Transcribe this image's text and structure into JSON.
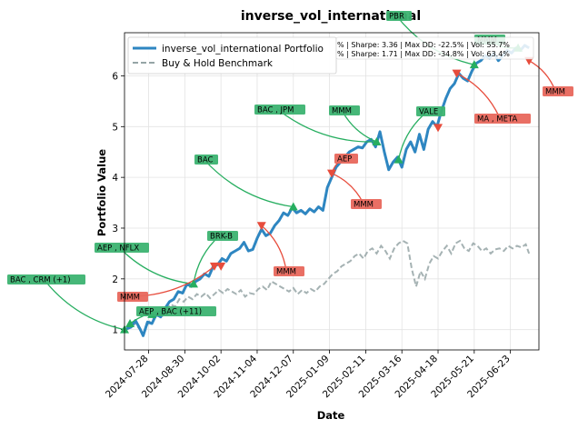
{
  "chart_data": {
    "type": "line",
    "title": "inverse_vol_international",
    "xlabel": "Date",
    "ylabel": "Portfolio Value",
    "xlim": [
      "2024-07-06",
      "2025-07-19"
    ],
    "ylim": [
      0.6,
      6.85
    ],
    "grid": true,
    "x_ticks": [
      "2024-07-28",
      "2024-08-30",
      "2024-10-02",
      "2024-11-04",
      "2024-12-07",
      "2025-01-09",
      "2025-02-11",
      "2025-03-16",
      "2025-04-18",
      "2025-05-21",
      "2025-06-23"
    ],
    "y_ticks": [
      1,
      2,
      3,
      4,
      5,
      6
    ],
    "legend": {
      "placement": "upper-left",
      "entries": [
        "inverse_vol_international Portfolio",
        "Buy & Hold Benchmark"
      ]
    },
    "stats": [
      "% | Sharpe: 3.36 | Max DD: -22.5% | Vol: 55.7%",
      "% | Sharpe: 1.71 | Max DD: -34.8% | Vol: 63.4%"
    ],
    "series": [
      {
        "name": "inverse_vol_international Portfolio",
        "color": "#2e86c1",
        "points": [
          [
            "2024-07-06",
            1.0
          ],
          [
            "2024-07-12",
            1.05
          ],
          [
            "2024-07-16",
            1.18
          ],
          [
            "2024-07-20",
            1.02
          ],
          [
            "2024-07-23",
            0.88
          ],
          [
            "2024-07-27",
            1.15
          ],
          [
            "2024-07-31",
            1.12
          ],
          [
            "2024-08-04",
            1.3
          ],
          [
            "2024-08-08",
            1.25
          ],
          [
            "2024-08-12",
            1.42
          ],
          [
            "2024-08-16",
            1.55
          ],
          [
            "2024-08-20",
            1.6
          ],
          [
            "2024-08-24",
            1.75
          ],
          [
            "2024-08-28",
            1.72
          ],
          [
            "2024-09-01",
            1.9
          ],
          [
            "2024-09-05",
            1.85
          ],
          [
            "2024-09-09",
            1.95
          ],
          [
            "2024-09-13",
            2.0
          ],
          [
            "2024-09-17",
            2.1
          ],
          [
            "2024-09-21",
            2.05
          ],
          [
            "2024-09-25",
            2.25
          ],
          [
            "2024-09-29",
            2.28
          ],
          [
            "2024-10-03",
            2.4
          ],
          [
            "2024-10-07",
            2.35
          ],
          [
            "2024-10-11",
            2.5
          ],
          [
            "2024-10-15",
            2.55
          ],
          [
            "2024-10-19",
            2.6
          ],
          [
            "2024-10-23",
            2.72
          ],
          [
            "2024-10-27",
            2.55
          ],
          [
            "2024-10-31",
            2.58
          ],
          [
            "2024-11-04",
            2.8
          ],
          [
            "2024-11-08",
            2.98
          ],
          [
            "2024-11-12",
            2.85
          ],
          [
            "2024-11-16",
            2.9
          ],
          [
            "2024-11-20",
            3.05
          ],
          [
            "2024-11-24",
            3.15
          ],
          [
            "2024-11-28",
            3.3
          ],
          [
            "2024-12-02",
            3.25
          ],
          [
            "2024-12-06",
            3.4
          ],
          [
            "2024-12-10",
            3.3
          ],
          [
            "2024-12-14",
            3.35
          ],
          [
            "2024-12-18",
            3.28
          ],
          [
            "2024-12-22",
            3.38
          ],
          [
            "2024-12-26",
            3.32
          ],
          [
            "2024-12-30",
            3.42
          ],
          [
            "2025-01-03",
            3.35
          ],
          [
            "2025-01-07",
            3.8
          ],
          [
            "2025-01-11",
            4.0
          ],
          [
            "2025-01-15",
            4.2
          ],
          [
            "2025-01-19",
            4.3
          ],
          [
            "2025-01-23",
            4.4
          ],
          [
            "2025-01-27",
            4.5
          ],
          [
            "2025-01-31",
            4.55
          ],
          [
            "2025-02-04",
            4.6
          ],
          [
            "2025-02-08",
            4.58
          ],
          [
            "2025-02-12",
            4.7
          ],
          [
            "2025-02-16",
            4.75
          ],
          [
            "2025-02-20",
            4.6
          ],
          [
            "2025-02-24",
            4.9
          ],
          [
            "2025-02-28",
            4.5
          ],
          [
            "2025-03-04",
            4.15
          ],
          [
            "2025-03-08",
            4.3
          ],
          [
            "2025-03-12",
            4.4
          ],
          [
            "2025-03-16",
            4.2
          ],
          [
            "2025-03-20",
            4.55
          ],
          [
            "2025-03-24",
            4.7
          ],
          [
            "2025-03-28",
            4.5
          ],
          [
            "2025-04-01",
            4.85
          ],
          [
            "2025-04-05",
            4.55
          ],
          [
            "2025-04-09",
            4.95
          ],
          [
            "2025-04-13",
            5.1
          ],
          [
            "2025-04-17",
            5.0
          ],
          [
            "2025-04-21",
            5.3
          ],
          [
            "2025-04-25",
            5.55
          ],
          [
            "2025-04-29",
            5.75
          ],
          [
            "2025-05-03",
            5.85
          ],
          [
            "2025-05-07",
            6.05
          ],
          [
            "2025-05-11",
            5.95
          ],
          [
            "2025-05-15",
            5.9
          ],
          [
            "2025-05-19",
            6.1
          ],
          [
            "2025-05-23",
            6.25
          ],
          [
            "2025-05-27",
            6.3
          ],
          [
            "2025-05-31",
            6.4
          ],
          [
            "2025-06-04",
            6.35
          ],
          [
            "2025-06-08",
            6.45
          ],
          [
            "2025-06-12",
            6.3
          ],
          [
            "2025-06-16",
            6.4
          ],
          [
            "2025-06-20",
            6.5
          ],
          [
            "2025-06-24",
            6.45
          ],
          [
            "2025-06-28",
            6.55
          ],
          [
            "2025-07-02",
            6.5
          ],
          [
            "2025-07-06",
            6.6
          ],
          [
            "2025-07-10",
            6.55
          ]
        ]
      },
      {
        "name": "Buy & Hold Benchmark",
        "color": "#95a5a6",
        "points": [
          [
            "2024-07-06",
            1.0
          ],
          [
            "2024-07-12",
            1.05
          ],
          [
            "2024-07-16",
            1.12
          ],
          [
            "2024-07-20",
            1.0
          ],
          [
            "2024-07-24",
            0.95
          ],
          [
            "2024-07-28",
            1.15
          ],
          [
            "2024-08-01",
            1.2
          ],
          [
            "2024-08-05",
            1.35
          ],
          [
            "2024-08-09",
            1.25
          ],
          [
            "2024-08-13",
            1.4
          ],
          [
            "2024-08-17",
            1.5
          ],
          [
            "2024-08-21",
            1.45
          ],
          [
            "2024-08-25",
            1.6
          ],
          [
            "2024-08-29",
            1.55
          ],
          [
            "2024-09-02",
            1.65
          ],
          [
            "2024-09-06",
            1.6
          ],
          [
            "2024-09-10",
            1.7
          ],
          [
            "2024-09-14",
            1.65
          ],
          [
            "2024-09-18",
            1.72
          ],
          [
            "2024-09-22",
            1.62
          ],
          [
            "2024-09-26",
            1.7
          ],
          [
            "2024-09-30",
            1.78
          ],
          [
            "2024-10-04",
            1.72
          ],
          [
            "2024-10-08",
            1.8
          ],
          [
            "2024-10-12",
            1.75
          ],
          [
            "2024-10-16",
            1.7
          ],
          [
            "2024-10-20",
            1.78
          ],
          [
            "2024-10-24",
            1.65
          ],
          [
            "2024-10-28",
            1.72
          ],
          [
            "2024-11-01",
            1.7
          ],
          [
            "2024-11-05",
            1.8
          ],
          [
            "2024-11-09",
            1.85
          ],
          [
            "2024-11-13",
            1.78
          ],
          [
            "2024-11-17",
            1.95
          ],
          [
            "2024-11-21",
            1.9
          ],
          [
            "2024-11-25",
            1.85
          ],
          [
            "2024-11-29",
            1.8
          ],
          [
            "2024-12-03",
            1.75
          ],
          [
            "2024-12-07",
            1.82
          ],
          [
            "2024-12-11",
            1.7
          ],
          [
            "2024-12-15",
            1.78
          ],
          [
            "2024-12-19",
            1.72
          ],
          [
            "2024-12-23",
            1.8
          ],
          [
            "2024-12-27",
            1.75
          ],
          [
            "2024-12-31",
            1.85
          ],
          [
            "2025-01-04",
            1.9
          ],
          [
            "2025-01-08",
            2.0
          ],
          [
            "2025-01-12",
            2.1
          ],
          [
            "2025-01-16",
            2.15
          ],
          [
            "2025-01-20",
            2.25
          ],
          [
            "2025-01-24",
            2.3
          ],
          [
            "2025-01-28",
            2.35
          ],
          [
            "2025-02-01",
            2.45
          ],
          [
            "2025-02-05",
            2.5
          ],
          [
            "2025-02-09",
            2.4
          ],
          [
            "2025-02-13",
            2.55
          ],
          [
            "2025-02-17",
            2.6
          ],
          [
            "2025-02-21",
            2.5
          ],
          [
            "2025-02-25",
            2.65
          ],
          [
            "2025-03-01",
            2.55
          ],
          [
            "2025-03-05",
            2.4
          ],
          [
            "2025-03-09",
            2.6
          ],
          [
            "2025-03-13",
            2.7
          ],
          [
            "2025-03-17",
            2.75
          ],
          [
            "2025-03-21",
            2.7
          ],
          [
            "2025-03-25",
            2.2
          ],
          [
            "2025-03-29",
            1.85
          ],
          [
            "2025-04-02",
            2.15
          ],
          [
            "2025-04-06",
            2.0
          ],
          [
            "2025-04-10",
            2.3
          ],
          [
            "2025-04-14",
            2.45
          ],
          [
            "2025-04-18",
            2.4
          ],
          [
            "2025-04-22",
            2.55
          ],
          [
            "2025-04-26",
            2.65
          ],
          [
            "2025-04-30",
            2.5
          ],
          [
            "2025-05-04",
            2.7
          ],
          [
            "2025-05-08",
            2.75
          ],
          [
            "2025-05-12",
            2.6
          ],
          [
            "2025-05-16",
            2.55
          ],
          [
            "2025-05-20",
            2.7
          ],
          [
            "2025-05-24",
            2.65
          ],
          [
            "2025-05-28",
            2.55
          ],
          [
            "2025-06-01",
            2.6
          ],
          [
            "2025-06-05",
            2.5
          ],
          [
            "2025-06-09",
            2.58
          ],
          [
            "2025-06-13",
            2.6
          ],
          [
            "2025-06-17",
            2.55
          ],
          [
            "2025-06-21",
            2.65
          ],
          [
            "2025-06-25",
            2.6
          ],
          [
            "2025-06-29",
            2.65
          ],
          [
            "2025-07-03",
            2.62
          ],
          [
            "2025-07-07",
            2.68
          ],
          [
            "2025-07-10",
            2.5
          ]
        ]
      }
    ],
    "buy_markers": [
      [
        "2024-07-06",
        1.0
      ],
      [
        "2024-07-11",
        1.12
      ],
      [
        "2024-07-31",
        1.3
      ],
      [
        "2024-09-07",
        1.9
      ],
      [
        "2024-12-07",
        3.42
      ],
      [
        "2025-02-21",
        4.7
      ],
      [
        "2025-03-13",
        4.35
      ],
      [
        "2025-05-21",
        6.22
      ],
      [
        "2025-06-30",
        6.55
      ]
    ],
    "sell_markers": [
      [
        "2024-09-26",
        2.25
      ],
      [
        "2024-10-02",
        2.25
      ],
      [
        "2024-11-08",
        3.05
      ],
      [
        "2025-01-11",
        4.08
      ],
      [
        "2025-04-18",
        4.98
      ],
      [
        "2025-05-05",
        6.05
      ],
      [
        "2025-07-10",
        6.3
      ]
    ],
    "annotations": [
      {
        "text": "BAC  , CRM   (+1)",
        "kind": "buy"
      },
      {
        "text": "AEP  , BAC   (+11)",
        "kind": "buy"
      },
      {
        "text": "AEP  , NFLX",
        "kind": "buy"
      },
      {
        "text": "BRK-B",
        "kind": "buy"
      },
      {
        "text": "BAC",
        "kind": "buy"
      },
      {
        "text": "BAC  , JPM",
        "kind": "buy"
      },
      {
        "text": "MMM",
        "kind": "buy"
      },
      {
        "text": "VALE",
        "kind": "buy"
      },
      {
        "text": "PBR",
        "kind": "buy"
      },
      {
        "text": "MMM",
        "kind": "buy"
      },
      {
        "text": "MMM",
        "kind": "sell"
      },
      {
        "text": "MMM",
        "kind": "sell"
      },
      {
        "text": "AEP",
        "kind": "sell"
      },
      {
        "text": "MMM",
        "kind": "sell"
      },
      {
        "text": "MA   , META",
        "kind": "sell"
      },
      {
        "text": "MMM",
        "kind": "sell"
      }
    ]
  }
}
